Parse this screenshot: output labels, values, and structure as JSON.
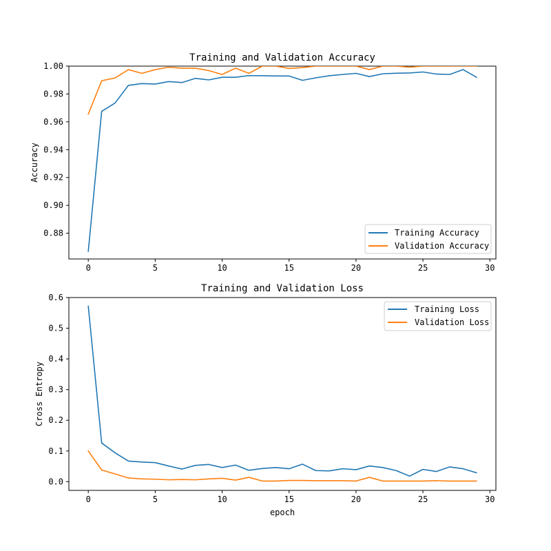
{
  "chart_data": [
    {
      "type": "line",
      "title": "Training and Validation Accuracy",
      "xlabel": "",
      "ylabel": "Accuracy",
      "xlim": [
        -1.45,
        30.45
      ],
      "ylim": [
        0.8615,
        1.0
      ],
      "xticks": [
        0,
        5,
        10,
        15,
        20,
        25,
        30
      ],
      "xtick_labels": [
        "0",
        "5",
        "10",
        "15",
        "20",
        "25",
        "30"
      ],
      "yticks": [
        0.88,
        0.9,
        0.92,
        0.94,
        0.96,
        0.98,
        1.0
      ],
      "ytick_labels": [
        "0.88",
        "0.90",
        "0.92",
        "0.94",
        "0.96",
        "0.98",
        "1.00"
      ],
      "legend_position": "lower-right",
      "x": [
        0,
        1,
        2,
        3,
        4,
        5,
        6,
        7,
        8,
        9,
        10,
        11,
        12,
        13,
        14,
        15,
        16,
        17,
        18,
        19,
        20,
        21,
        22,
        23,
        24,
        25,
        26,
        27,
        28,
        29
      ],
      "series": [
        {
          "name": "Training Accuracy",
          "color": "#1f77b4",
          "values": [
            0.867,
            0.9675,
            0.9735,
            0.9862,
            0.9875,
            0.9871,
            0.9889,
            0.9882,
            0.9912,
            0.9901,
            0.992,
            0.992,
            0.9932,
            0.9931,
            0.9929,
            0.9929,
            0.9898,
            0.9916,
            0.9931,
            0.994,
            0.9948,
            0.9925,
            0.9945,
            0.9949,
            0.9951,
            0.9958,
            0.9943,
            0.994,
            0.9975,
            0.992
          ]
        },
        {
          "name": "Validation Accuracy",
          "color": "#ff7f0e",
          "values": [
            0.9655,
            0.9895,
            0.9915,
            0.9975,
            0.9948,
            0.9975,
            0.9992,
            0.9985,
            0.9985,
            0.9968,
            0.994,
            0.9985,
            0.9948,
            1.0,
            1.0,
            0.9983,
            0.999,
            1.0,
            1.0,
            1.0,
            1.0,
            0.9975,
            1.0,
            1.0,
            0.9992,
            1.0,
            1.0,
            1.0,
            1.0,
            1.0
          ]
        }
      ]
    },
    {
      "type": "line",
      "title": "Training and Validation Loss",
      "xlabel": "epoch",
      "ylabel": "Cross Entropy",
      "xlim": [
        -1.45,
        30.45
      ],
      "ylim": [
        -0.0285,
        0.6
      ],
      "xticks": [
        0,
        5,
        10,
        15,
        20,
        25,
        30
      ],
      "xtick_labels": [
        "0",
        "5",
        "10",
        "15",
        "20",
        "25",
        "30"
      ],
      "yticks": [
        0.0,
        0.1,
        0.2,
        0.3,
        0.4,
        0.5,
        0.6
      ],
      "ytick_labels": [
        "0.0",
        "0.1",
        "0.2",
        "0.3",
        "0.4",
        "0.5",
        "0.6"
      ],
      "legend_position": "upper-right",
      "x": [
        0,
        1,
        2,
        3,
        4,
        5,
        6,
        7,
        8,
        9,
        10,
        11,
        12,
        13,
        14,
        15,
        16,
        17,
        18,
        19,
        20,
        21,
        22,
        23,
        24,
        25,
        26,
        27,
        28,
        29
      ],
      "series": [
        {
          "name": "Training Loss",
          "color": "#1f77b4",
          "values": [
            0.572,
            0.126,
            0.094,
            0.067,
            0.064,
            0.062,
            0.051,
            0.041,
            0.053,
            0.056,
            0.046,
            0.054,
            0.037,
            0.043,
            0.046,
            0.042,
            0.057,
            0.036,
            0.035,
            0.042,
            0.039,
            0.051,
            0.046,
            0.036,
            0.018,
            0.04,
            0.033,
            0.048,
            0.042,
            0.029
          ]
        },
        {
          "name": "Validation Loss",
          "color": "#ff7f0e",
          "values": [
            0.1,
            0.038,
            0.025,
            0.012,
            0.009,
            0.008,
            0.006,
            0.007,
            0.006,
            0.009,
            0.011,
            0.005,
            0.014,
            0.002,
            0.002,
            0.004,
            0.004,
            0.003,
            0.003,
            0.003,
            0.002,
            0.014,
            0.002,
            0.002,
            0.002,
            0.002,
            0.003,
            0.002,
            0.002,
            0.002
          ]
        }
      ]
    }
  ]
}
